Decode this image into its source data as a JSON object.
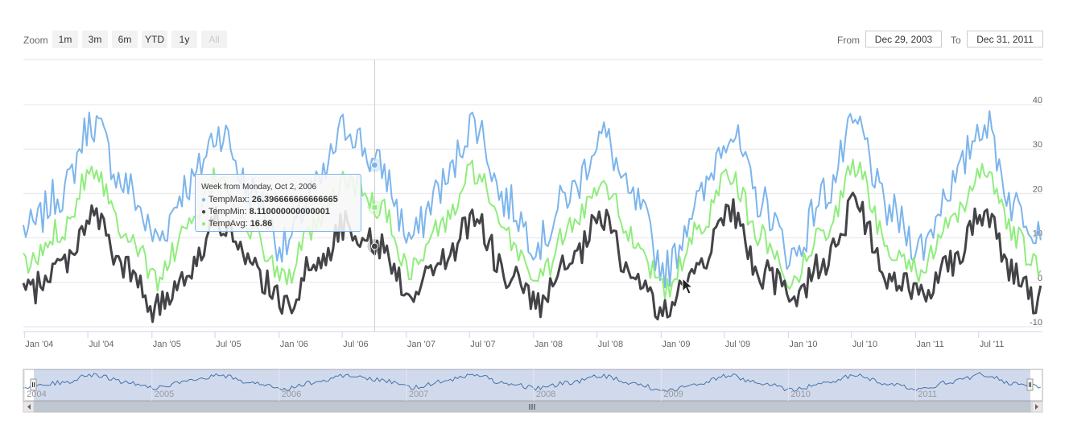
{
  "range_selector": {
    "zoom_label": "Zoom",
    "buttons": [
      "1m",
      "3m",
      "6m",
      "YTD",
      "1y",
      "All"
    ],
    "from_label": "From",
    "from_value": "Dec 29, 2003",
    "to_label": "To",
    "to_value": "Dec 31, 2011"
  },
  "colors": {
    "TempMax": "#7cb5ec",
    "TempMin": "#434348",
    "TempAvg": "#90ed7d",
    "navigator": "#4572a7"
  },
  "tooltip": {
    "header": "Week from Monday, Oct 2, 2006",
    "rows": [
      {
        "name": "TempMax",
        "value": "26.396666666666665"
      },
      {
        "name": "TempMin",
        "value": "8.110000000000001"
      },
      {
        "name": "TempAvg",
        "value": "16.86"
      }
    ]
  },
  "chart_data": {
    "type": "line",
    "xlabel": "",
    "ylabel": "",
    "ylim": [
      -10,
      40
    ],
    "yticks": [
      -10,
      0,
      10,
      20,
      30,
      40
    ],
    "x_start": "2003-12-29",
    "x_end": "2011-12-31",
    "x_tick_labels": [
      "Jan '04",
      "Jul '04",
      "Jan '05",
      "Jul '05",
      "Jan '06",
      "Jul '06",
      "Jan '07",
      "Jul '07",
      "Jan '08",
      "Jul '08",
      "Jan '09",
      "Jul '09",
      "Jan '10",
      "Jul '10",
      "Jan '11",
      "Jul '11"
    ],
    "navigator_labels": [
      "2004",
      "2005",
      "2006",
      "2007",
      "2008",
      "2009",
      "2010",
      "2011"
    ],
    "x_monthly": [
      "2004-01",
      "2004-04",
      "2004-07",
      "2004-10",
      "2005-01",
      "2005-04",
      "2005-07",
      "2005-10",
      "2006-01",
      "2006-04",
      "2006-07",
      "2006-10",
      "2007-01",
      "2007-04",
      "2007-07",
      "2007-10",
      "2008-01",
      "2008-04",
      "2008-07",
      "2008-10",
      "2009-01",
      "2009-04",
      "2009-07",
      "2009-10",
      "2010-01",
      "2010-04",
      "2010-07",
      "2010-10",
      "2011-01",
      "2011-04",
      "2011-07",
      "2011-10",
      "2011-12"
    ],
    "series": [
      {
        "name": "TempMax",
        "values": [
          12,
          20,
          36,
          22,
          10,
          22,
          34,
          20,
          8,
          21,
          35,
          26,
          10,
          22,
          36,
          18,
          9,
          20,
          33,
          18,
          3,
          18,
          34,
          18,
          6,
          20,
          35,
          16,
          8,
          22,
          36,
          17,
          13
        ]
      },
      {
        "name": "TempMin",
        "values": [
          -2,
          4,
          15,
          3,
          -6,
          3,
          14,
          3,
          -5,
          4,
          13,
          8,
          -2,
          5,
          14,
          2,
          -5,
          4,
          14,
          1,
          -7,
          4,
          16,
          2,
          -3,
          5,
          17,
          0,
          -2,
          5,
          16,
          2,
          -4
        ]
      },
      {
        "name": "TempAvg",
        "values": [
          4,
          12,
          26,
          12,
          1,
          12,
          24,
          11,
          1,
          12,
          23,
          17,
          3,
          13,
          25,
          10,
          1,
          12,
          23,
          10,
          -2,
          11,
          25,
          10,
          1,
          12,
          26,
          8,
          3,
          13,
          26,
          10,
          3
        ]
      }
    ],
    "hover": {
      "date": "2006-10-02",
      "TempMax": 26.396666666666665,
      "TempMin": 8.110000000000001,
      "TempAvg": 16.86
    }
  }
}
